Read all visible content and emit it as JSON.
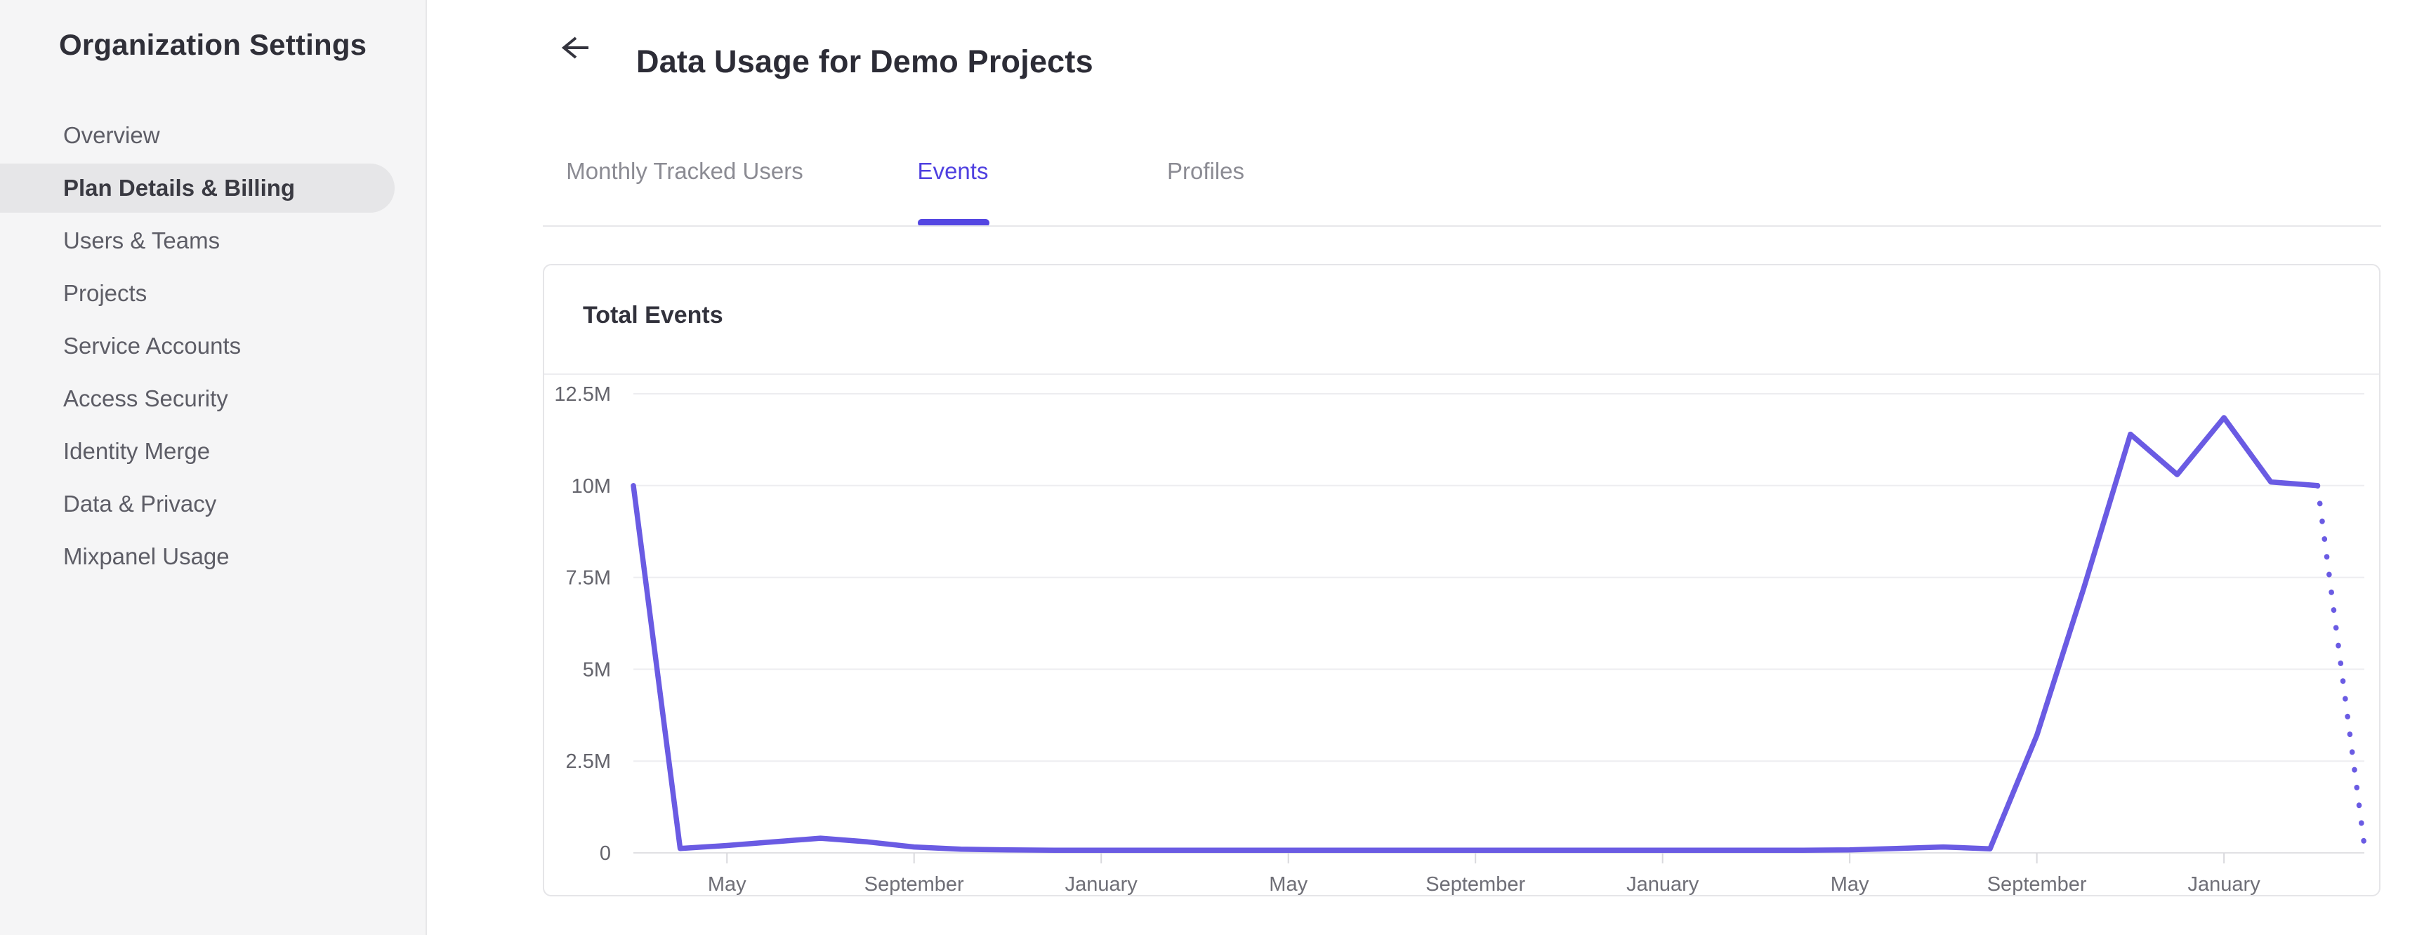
{
  "sidebar": {
    "title": "Organization Settings",
    "items": [
      {
        "label": "Overview",
        "selected": false
      },
      {
        "label": "Plan Details & Billing",
        "selected": true
      },
      {
        "label": "Users & Teams",
        "selected": false
      },
      {
        "label": "Projects",
        "selected": false
      },
      {
        "label": "Service Accounts",
        "selected": false
      },
      {
        "label": "Access Security",
        "selected": false
      },
      {
        "label": "Identity Merge",
        "selected": false
      },
      {
        "label": "Data & Privacy",
        "selected": false
      },
      {
        "label": "Mixpanel Usage",
        "selected": false
      }
    ]
  },
  "header": {
    "title": "Data Usage for Demo Projects",
    "back_icon": "left-arrow"
  },
  "tabs": [
    {
      "label": "Monthly Tracked Users",
      "active": false
    },
    {
      "label": "Events",
      "active": true
    },
    {
      "label": "Profiles",
      "active": false
    }
  ],
  "card": {
    "title": "Total Events"
  },
  "colors": {
    "accent": "#4f40e0",
    "line": "#6a5be3",
    "gridline": "#ededf0",
    "axis": "#e1e1e4",
    "tick": "#d9d9dd",
    "y_label": "#64646c",
    "x_label": "#6f6f77"
  },
  "chart_data": {
    "type": "line",
    "title": "Total Events",
    "y_ticks": [
      "0",
      "2.5M",
      "5M",
      "7.5M",
      "10M",
      "12.5M"
    ],
    "ylim": [
      0,
      12500000
    ],
    "grid": "horizontal",
    "legend": "none",
    "x_start_month": "March",
    "x_tick_labels": [
      "May",
      "September",
      "January",
      "May",
      "September",
      "January",
      "May",
      "September",
      "January"
    ],
    "x_tick_indices": [
      2,
      6,
      10,
      14,
      18,
      22,
      26,
      30,
      34
    ],
    "values_millions": [
      10.0,
      0.12,
      0.2,
      0.3,
      0.4,
      0.3,
      0.16,
      0.1,
      0.08,
      0.07,
      0.07,
      0.07,
      0.07,
      0.07,
      0.07,
      0.07,
      0.07,
      0.07,
      0.07,
      0.07,
      0.07,
      0.07,
      0.07,
      0.07,
      0.07,
      0.07,
      0.08,
      0.12,
      0.16,
      0.11,
      3.2,
      7.2,
      11.4,
      10.3,
      11.85,
      10.1,
      10.0,
      0.2
    ],
    "projected_from_index": 36,
    "projected_style": "dotted"
  }
}
